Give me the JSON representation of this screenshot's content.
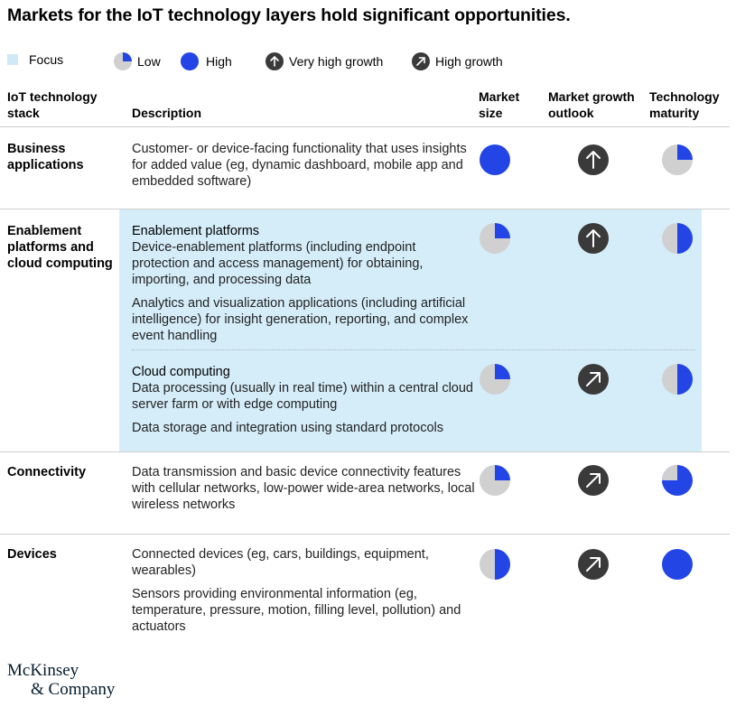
{
  "title": "Markets for the IoT technology layers hold significant opportunities.",
  "legend": {
    "focus": "Focus",
    "low": "Low",
    "high": "High",
    "very_high_growth": "Very high growth",
    "high_growth": "High growth"
  },
  "headers": {
    "stack_line1": "IoT technology",
    "stack_line2": "stack",
    "description": "Description",
    "market_size_line1": "Market",
    "market_size_line2": "size",
    "growth_line1": "Market growth",
    "growth_line2": "outlook",
    "maturity_line1": "Technology",
    "maturity_line2": "maturity"
  },
  "rows": {
    "business": {
      "label_line1": "Business",
      "label_line2": "applications",
      "desc": "Customer- or device-facing functionality that uses insights for added value (eg, dynamic dashboard, mobile app and embedded software)",
      "market_size": "high",
      "growth": "very_high",
      "maturity": "low"
    },
    "enablement": {
      "label_line1": "Enablement",
      "label_line2": "platforms and",
      "label_line3": "cloud computing",
      "platforms": {
        "title": "Enablement platforms",
        "desc1": "Device-enablement platforms (including endpoint protection and access management) for obtaining, importing, and processing data",
        "desc2": "Analytics and visualization applications (including artificial intelligence) for insight generation, reporting, and complex event handling",
        "market_size": "low",
        "growth": "very_high",
        "maturity": "half"
      },
      "cloud": {
        "title": "Cloud computing",
        "desc1": "Data processing (usually in real time) within a central cloud server farm or with edge computing",
        "desc2": "Data storage and integration using standard protocols",
        "market_size": "low",
        "growth": "high",
        "maturity": "half"
      }
    },
    "connectivity": {
      "label": "Connectivity",
      "desc": "Data transmission and basic device connectivity features with cellular networks, low-power wide-area networks, local wireless networks",
      "market_size": "low",
      "growth": "high",
      "maturity": "three_quarter"
    },
    "devices": {
      "label": "Devices",
      "desc1": "Connected devices (eg, cars, buildings, equipment, wearables)",
      "desc2": "Sensors providing environmental information (eg, temperature, pressure, motion, filling level, pollution) and actuators",
      "market_size": "half",
      "growth": "high",
      "maturity": "high"
    }
  },
  "logo": {
    "line1": "McKinsey",
    "line2": "& Company"
  },
  "colors": {
    "focus": "#d5edf9",
    "blue": "#2345e5",
    "grey": "#d0d0d0",
    "dark": "#3a3a3a"
  }
}
